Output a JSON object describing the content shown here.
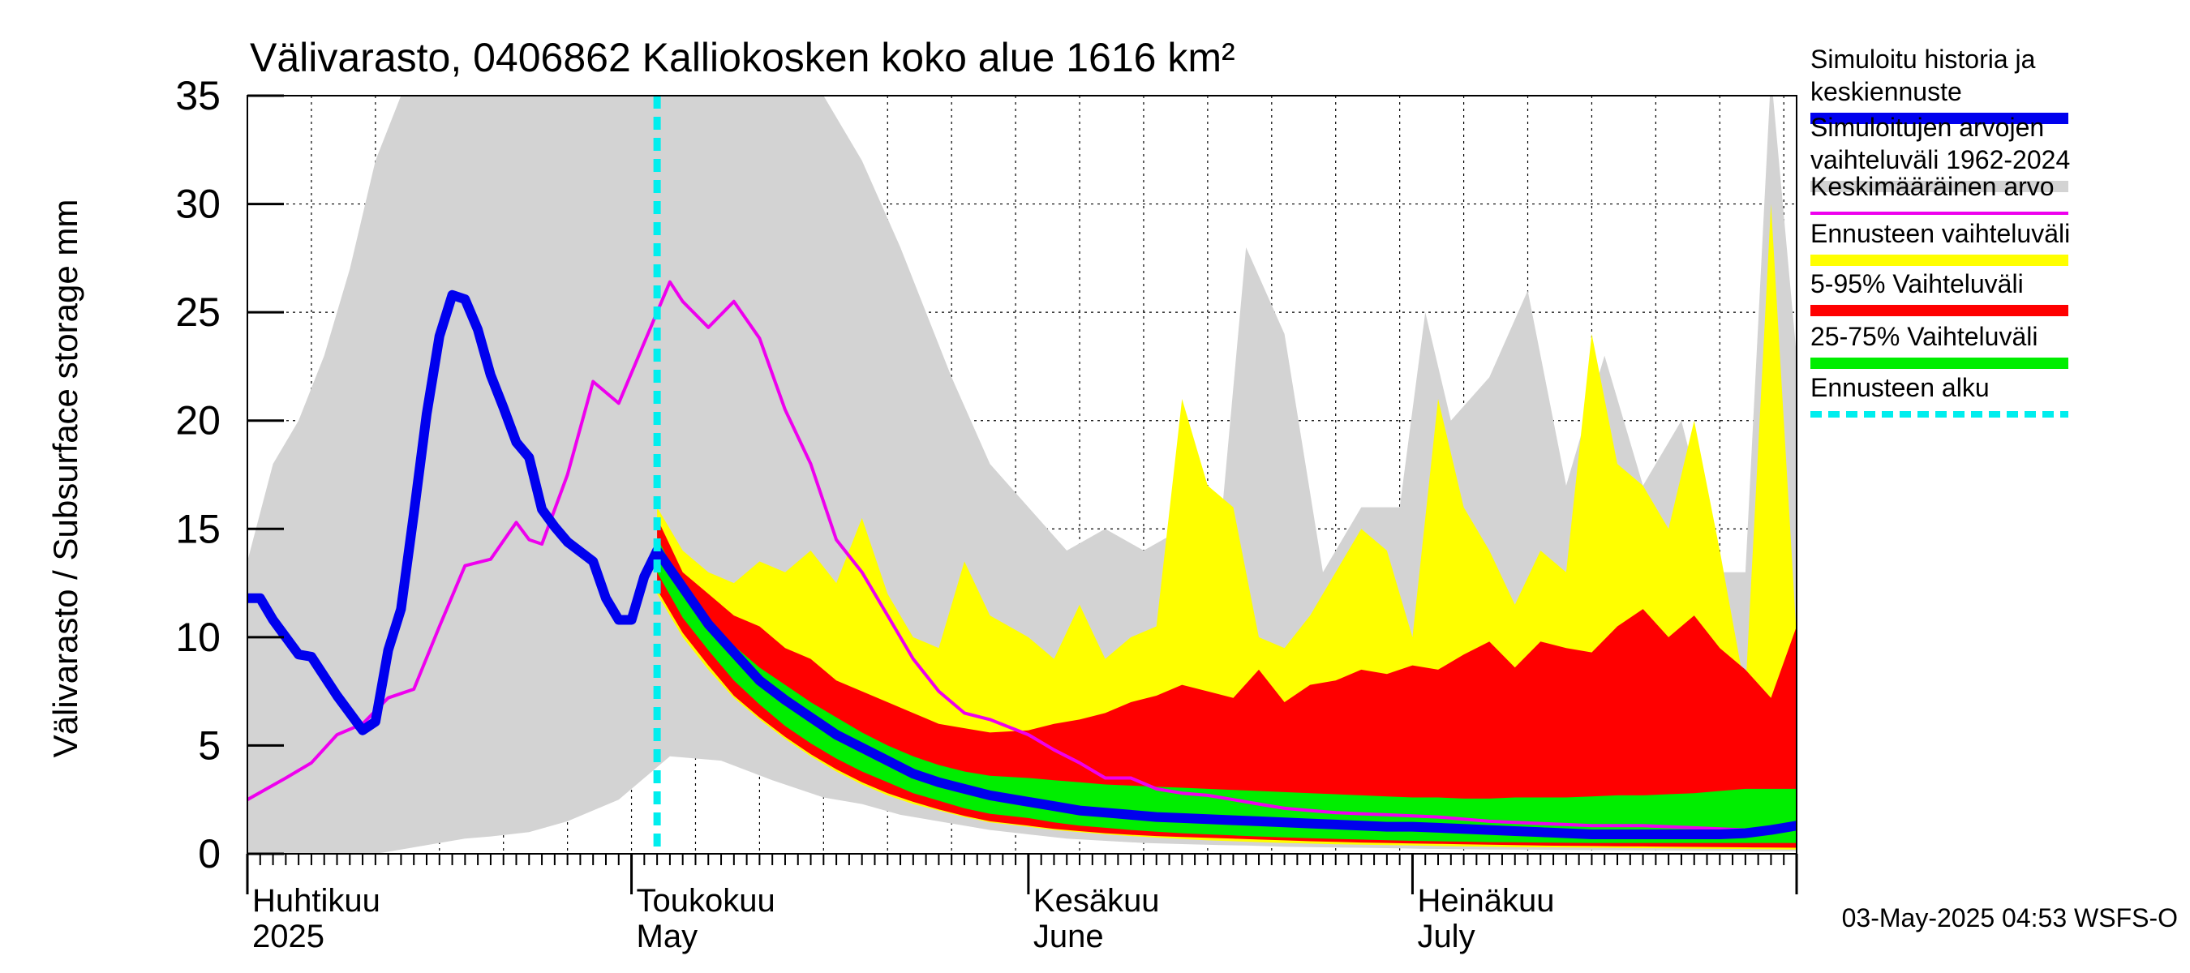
{
  "chart_data": {
    "type": "area",
    "title": "Välivarasto, 0406862 Kalliokosken koko alue 1616 km²",
    "ylabel": "Välivarasto / Subsurface storage  mm",
    "ylim": [
      0,
      35
    ],
    "yticks": [
      0,
      5,
      10,
      15,
      20,
      25,
      30,
      35
    ],
    "xlim": [
      "2025-04-01",
      "2025-07-31"
    ],
    "grid": true,
    "legend_position": "right",
    "month_labels": [
      {
        "date": "2025-04-01",
        "fi": "Huhtikuu",
        "en": "2025"
      },
      {
        "date": "2025-05-01",
        "fi": "Toukokuu",
        "en": "May"
      },
      {
        "date": "2025-06-01",
        "fi": "Kesäkuu",
        "en": "June"
      },
      {
        "date": "2025-07-01",
        "fi": "Heinäkuu",
        "en": "July"
      }
    ],
    "forecast_start": "2025-05-03",
    "footer": "03-May-2025 04:53 WSFS-O",
    "legend": [
      {
        "key": "sim",
        "lines": [
          "Simuloitu historia ja",
          "keskiennuste"
        ],
        "color": "#0000ee",
        "style": "thick"
      },
      {
        "key": "range",
        "lines": [
          "Simuloitujen arvojen",
          "vaihteluväli 1962-2024"
        ],
        "color": "#d3d3d3",
        "style": "thick"
      },
      {
        "key": "mean",
        "lines": [
          "Keskimääräinen arvo"
        ],
        "color": "#ee00ee",
        "style": "thin"
      },
      {
        "key": "fc_range",
        "lines": [
          "Ennusteen vaihteluväli"
        ],
        "color": "#ffff00",
        "style": "thick"
      },
      {
        "key": "p5_95",
        "lines": [
          "5-95% Vaihteluväli"
        ],
        "color": "#ff0000",
        "style": "thick"
      },
      {
        "key": "p25_75",
        "lines": [
          "25-75% Vaihteluväli"
        ],
        "color": "#00ee00",
        "style": "thick"
      },
      {
        "key": "fc_start",
        "lines": [
          "Ennusteen alku"
        ],
        "color": "#00eeee",
        "style": "dashed"
      }
    ],
    "series": {
      "hist_range": {
        "name": "Simuloitujen arvojen vaihteluväli 1962-2024",
        "color": "#d3d3d3",
        "dates": [
          "2025-04-01",
          "2025-04-03",
          "2025-04-05",
          "2025-04-07",
          "2025-04-09",
          "2025-04-11",
          "2025-04-13",
          "2025-04-16",
          "2025-04-18",
          "2025-04-20",
          "2025-04-23",
          "2025-04-26",
          "2025-04-30",
          "2025-05-04",
          "2025-05-08",
          "2025-05-12",
          "2025-05-16",
          "2025-05-19",
          "2025-05-22",
          "2025-05-26",
          "2025-05-29",
          "2025-06-01",
          "2025-06-04",
          "2025-06-07",
          "2025-06-10",
          "2025-06-13",
          "2025-06-16",
          "2025-06-18",
          "2025-06-21",
          "2025-06-24",
          "2025-06-27",
          "2025-06-30",
          "2025-07-02",
          "2025-07-04",
          "2025-07-07",
          "2025-07-10",
          "2025-07-13",
          "2025-07-16",
          "2025-07-19",
          "2025-07-22",
          "2025-07-25",
          "2025-07-27",
          "2025-07-29",
          "2025-07-31"
        ],
        "max": [
          13.5,
          18,
          20,
          23,
          27,
          32,
          35,
          35,
          35,
          35,
          35,
          35,
          35,
          35,
          35,
          35,
          35,
          32,
          28,
          22,
          18,
          16,
          14,
          15,
          14,
          15,
          15,
          28,
          24,
          13,
          16,
          16,
          25,
          20,
          22,
          26,
          17,
          23,
          17,
          20,
          13,
          13,
          36,
          23
        ],
        "min": [
          0,
          0,
          0,
          0,
          0,
          0,
          0.2,
          0.5,
          0.7,
          0.8,
          1,
          1.5,
          2.5,
          4.5,
          4.3,
          3.4,
          2.6,
          2.3,
          1.8,
          1.4,
          1.1,
          0.9,
          0.7,
          0.6,
          0.5,
          0.45,
          0.4,
          0.38,
          0.33,
          0.3,
          0.28,
          0.25,
          0.23,
          0.22,
          0.2,
          0.19,
          0.18,
          0.17,
          0.16,
          0.15,
          0.14,
          0.13,
          0.12,
          0.12
        ]
      },
      "fc_range": {
        "name": "Ennusteen vaihteluväli",
        "color": "#ffff00",
        "dates": [
          "2025-05-03",
          "2025-05-05",
          "2025-05-07",
          "2025-05-09",
          "2025-05-11",
          "2025-05-13",
          "2025-05-15",
          "2025-05-17",
          "2025-05-19",
          "2025-05-21",
          "2025-05-23",
          "2025-05-25",
          "2025-05-27",
          "2025-05-29",
          "2025-06-01",
          "2025-06-03",
          "2025-06-05",
          "2025-06-07",
          "2025-06-09",
          "2025-06-11",
          "2025-06-13",
          "2025-06-15",
          "2025-06-17",
          "2025-06-19",
          "2025-06-21",
          "2025-06-23",
          "2025-06-25",
          "2025-06-27",
          "2025-06-29",
          "2025-07-01",
          "2025-07-03",
          "2025-07-05",
          "2025-07-07",
          "2025-07-09",
          "2025-07-11",
          "2025-07-13",
          "2025-07-15",
          "2025-07-17",
          "2025-07-19",
          "2025-07-21",
          "2025-07-23",
          "2025-07-25",
          "2025-07-27",
          "2025-07-29",
          "2025-07-31"
        ],
        "max": [
          16,
          14,
          13,
          12.5,
          13.5,
          13,
          14,
          12.5,
          15.5,
          12,
          10,
          9.5,
          13.5,
          11,
          10,
          9,
          11.5,
          9,
          10,
          10.5,
          21,
          17,
          16,
          10,
          9.5,
          11,
          13,
          15,
          14,
          10,
          21,
          16,
          14,
          11.5,
          14,
          13,
          24,
          18,
          17,
          15,
          20,
          14,
          7.5,
          30,
          10
        ],
        "min": [
          12,
          10,
          8.5,
          7.2,
          6.2,
          5.3,
          4.5,
          3.8,
          3.2,
          2.7,
          2.3,
          2,
          1.7,
          1.45,
          1.25,
          1.1,
          1,
          0.9,
          0.82,
          0.75,
          0.68,
          0.62,
          0.58,
          0.54,
          0.5,
          0.47,
          0.44,
          0.42,
          0.4,
          0.38,
          0.36,
          0.34,
          0.33,
          0.31,
          0.3,
          0.29,
          0.28,
          0.27,
          0.26,
          0.25,
          0.24,
          0.23,
          0.22,
          0.21,
          0.2
        ]
      },
      "p5_95": {
        "name": "5-95% Vaihteluväli",
        "color": "#ff0000",
        "dates": [
          "2025-05-03",
          "2025-05-05",
          "2025-05-07",
          "2025-05-09",
          "2025-05-11",
          "2025-05-13",
          "2025-05-15",
          "2025-05-17",
          "2025-05-19",
          "2025-05-21",
          "2025-05-23",
          "2025-05-25",
          "2025-05-27",
          "2025-05-29",
          "2025-06-01",
          "2025-06-03",
          "2025-06-05",
          "2025-06-07",
          "2025-06-09",
          "2025-06-11",
          "2025-06-13",
          "2025-06-15",
          "2025-06-17",
          "2025-06-19",
          "2025-06-21",
          "2025-06-23",
          "2025-06-25",
          "2025-06-27",
          "2025-06-29",
          "2025-07-01",
          "2025-07-03",
          "2025-07-05",
          "2025-07-07",
          "2025-07-09",
          "2025-07-11",
          "2025-07-13",
          "2025-07-15",
          "2025-07-17",
          "2025-07-19",
          "2025-07-21",
          "2025-07-23",
          "2025-07-25",
          "2025-07-27",
          "2025-07-29",
          "2025-07-31"
        ],
        "max": [
          15.5,
          13,
          12,
          11,
          10.5,
          9.5,
          9,
          8,
          7.5,
          7,
          6.5,
          6,
          5.8,
          5.6,
          5.7,
          6,
          6.2,
          6.5,
          7,
          7.3,
          7.8,
          7.5,
          7.2,
          8.5,
          7,
          7.8,
          8,
          8.5,
          8.3,
          8.7,
          8.5,
          9.2,
          9.8,
          8.6,
          9.8,
          9.5,
          9.3,
          10.5,
          11.3,
          10,
          11,
          9.5,
          8.5,
          7.2,
          10.5
        ],
        "min": [
          12.2,
          10.2,
          8.7,
          7.3,
          6.3,
          5.4,
          4.6,
          3.9,
          3.3,
          2.8,
          2.4,
          2.05,
          1.75,
          1.5,
          1.3,
          1.15,
          1.05,
          0.95,
          0.88,
          0.82,
          0.78,
          0.74,
          0.7,
          0.66,
          0.62,
          0.58,
          0.55,
          0.52,
          0.5,
          0.48,
          0.46,
          0.44,
          0.42,
          0.4,
          0.38,
          0.37,
          0.36,
          0.35,
          0.34,
          0.33,
          0.32,
          0.31,
          0.3,
          0.29,
          0.28
        ]
      },
      "p25_75": {
        "name": "25-75% Vaihteluväli",
        "color": "#00ee00",
        "dates": [
          "2025-05-03",
          "2025-05-05",
          "2025-05-07",
          "2025-05-09",
          "2025-05-11",
          "2025-05-13",
          "2025-05-15",
          "2025-05-17",
          "2025-05-19",
          "2025-05-21",
          "2025-05-23",
          "2025-05-25",
          "2025-05-27",
          "2025-05-29",
          "2025-06-01",
          "2025-06-03",
          "2025-06-05",
          "2025-06-07",
          "2025-06-09",
          "2025-06-11",
          "2025-06-13",
          "2025-06-15",
          "2025-06-17",
          "2025-06-19",
          "2025-06-21",
          "2025-06-23",
          "2025-06-25",
          "2025-06-27",
          "2025-06-29",
          "2025-07-01",
          "2025-07-03",
          "2025-07-05",
          "2025-07-07",
          "2025-07-09",
          "2025-07-11",
          "2025-07-13",
          "2025-07-15",
          "2025-07-17",
          "2025-07-19",
          "2025-07-21",
          "2025-07-23",
          "2025-07-25",
          "2025-07-27",
          "2025-07-29",
          "2025-07-31"
        ],
        "max": [
          14.6,
          12.3,
          10.8,
          9.6,
          8.6,
          7.8,
          7,
          6.3,
          5.6,
          5,
          4.5,
          4.1,
          3.8,
          3.6,
          3.5,
          3.4,
          3.3,
          3.2,
          3.15,
          3.1,
          3.05,
          3,
          2.95,
          2.9,
          2.85,
          2.8,
          2.75,
          2.7,
          2.65,
          2.6,
          2.6,
          2.55,
          2.55,
          2.6,
          2.6,
          2.6,
          2.65,
          2.7,
          2.7,
          2.75,
          2.8,
          2.9,
          3,
          3,
          3
        ],
        "min": [
          13,
          10.9,
          9.4,
          8,
          6.9,
          5.9,
          5.1,
          4.4,
          3.8,
          3.3,
          2.8,
          2.45,
          2.1,
          1.85,
          1.65,
          1.45,
          1.3,
          1.2,
          1.1,
          1.02,
          0.95,
          0.9,
          0.85,
          0.8,
          0.76,
          0.72,
          0.69,
          0.66,
          0.63,
          0.6,
          0.58,
          0.56,
          0.54,
          0.53,
          0.52,
          0.51,
          0.5,
          0.5,
          0.5,
          0.5,
          0.5,
          0.5,
          0.5,
          0.5,
          0.5
        ]
      },
      "sim": {
        "name": "Simuloitu historia ja keskiennuste",
        "color": "#0000ee",
        "dates": [
          "2025-04-01",
          "2025-04-02",
          "2025-04-03",
          "2025-04-05",
          "2025-04-06",
          "2025-04-08",
          "2025-04-10",
          "2025-04-11",
          "2025-04-12",
          "2025-04-13",
          "2025-04-14",
          "2025-04-15",
          "2025-04-16",
          "2025-04-17",
          "2025-04-18",
          "2025-04-19",
          "2025-04-20",
          "2025-04-21",
          "2025-04-22",
          "2025-04-23",
          "2025-04-24",
          "2025-04-25",
          "2025-04-26",
          "2025-04-28",
          "2025-04-29",
          "2025-04-30",
          "2025-05-01",
          "2025-05-02",
          "2025-05-03",
          "2025-05-05",
          "2025-05-07",
          "2025-05-09",
          "2025-05-11",
          "2025-05-13",
          "2025-05-15",
          "2025-05-17",
          "2025-05-19",
          "2025-05-21",
          "2025-05-23",
          "2025-05-25",
          "2025-05-27",
          "2025-05-29",
          "2025-06-01",
          "2025-06-03",
          "2025-06-05",
          "2025-06-07",
          "2025-06-09",
          "2025-06-11",
          "2025-06-13",
          "2025-06-15",
          "2025-06-17",
          "2025-06-19",
          "2025-06-21",
          "2025-06-23",
          "2025-06-25",
          "2025-06-27",
          "2025-06-29",
          "2025-07-01",
          "2025-07-03",
          "2025-07-05",
          "2025-07-07",
          "2025-07-09",
          "2025-07-11",
          "2025-07-13",
          "2025-07-15",
          "2025-07-17",
          "2025-07-19",
          "2025-07-21",
          "2025-07-23",
          "2025-07-25",
          "2025-07-27",
          "2025-07-29",
          "2025-07-31"
        ],
        "values": [
          11.8,
          11.8,
          10.8,
          9.2,
          9.1,
          7.3,
          5.7,
          6.1,
          9.4,
          11.3,
          15.7,
          20.3,
          23.9,
          25.8,
          25.6,
          24.2,
          22.1,
          20.6,
          19,
          18.3,
          15.9,
          15.1,
          14.4,
          13.5,
          11.8,
          10.8,
          10.8,
          12.8,
          14,
          12.3,
          10.6,
          9.3,
          8,
          7.1,
          6.3,
          5.5,
          4.9,
          4.3,
          3.7,
          3.3,
          3,
          2.7,
          2.4,
          2.2,
          2,
          1.9,
          1.8,
          1.7,
          1.65,
          1.6,
          1.55,
          1.5,
          1.45,
          1.4,
          1.35,
          1.3,
          1.25,
          1.25,
          1.2,
          1.15,
          1.1,
          1.05,
          1,
          0.95,
          0.9,
          0.9,
          0.9,
          0.9,
          0.9,
          0.9,
          0.95,
          1.1,
          1.3
        ]
      },
      "mean": {
        "name": "Keskimääräinen arvo",
        "color": "#ee00ee",
        "dates": [
          "2025-04-01",
          "2025-04-04",
          "2025-04-06",
          "2025-04-08",
          "2025-04-10",
          "2025-04-12",
          "2025-04-14",
          "2025-04-16",
          "2025-04-18",
          "2025-04-20",
          "2025-04-22",
          "2025-04-23",
          "2025-04-24",
          "2025-04-26",
          "2025-04-28",
          "2025-04-30",
          "2025-05-02",
          "2025-05-04",
          "2025-05-05",
          "2025-05-07",
          "2025-05-09",
          "2025-05-11",
          "2025-05-13",
          "2025-05-15",
          "2025-05-17",
          "2025-05-19",
          "2025-05-21",
          "2025-05-23",
          "2025-05-25",
          "2025-05-27",
          "2025-05-29",
          "2025-06-01",
          "2025-06-03",
          "2025-06-05",
          "2025-06-07",
          "2025-06-09",
          "2025-06-11",
          "2025-06-13",
          "2025-06-15",
          "2025-06-17",
          "2025-06-19",
          "2025-06-21",
          "2025-06-23",
          "2025-06-25",
          "2025-06-27",
          "2025-06-29",
          "2025-07-01",
          "2025-07-03",
          "2025-07-05",
          "2025-07-07",
          "2025-07-09",
          "2025-07-11",
          "2025-07-13",
          "2025-07-15",
          "2025-07-17",
          "2025-07-19",
          "2025-07-21",
          "2025-07-23",
          "2025-07-25",
          "2025-07-27",
          "2025-07-29",
          "2025-07-31"
        ],
        "values": [
          2.5,
          3.5,
          4.2,
          5.5,
          6,
          7.2,
          7.6,
          10.5,
          13.3,
          13.6,
          15.3,
          14.5,
          14.3,
          17.5,
          21.8,
          20.8,
          23.6,
          26.4,
          25.5,
          24.3,
          25.5,
          23.8,
          20.5,
          18,
          14.5,
          13,
          11,
          9,
          7.5,
          6.5,
          6.2,
          5.5,
          4.8,
          4.2,
          3.5,
          3.5,
          3,
          2.8,
          2.7,
          2.5,
          2.3,
          2.1,
          2,
          1.9,
          1.85,
          1.8,
          1.75,
          1.7,
          1.6,
          1.5,
          1.45,
          1.4,
          1.35,
          1.3,
          1.3,
          1.3,
          1.25,
          1.2,
          1.15,
          1.1,
          1.15,
          1.3
        ]
      }
    }
  }
}
